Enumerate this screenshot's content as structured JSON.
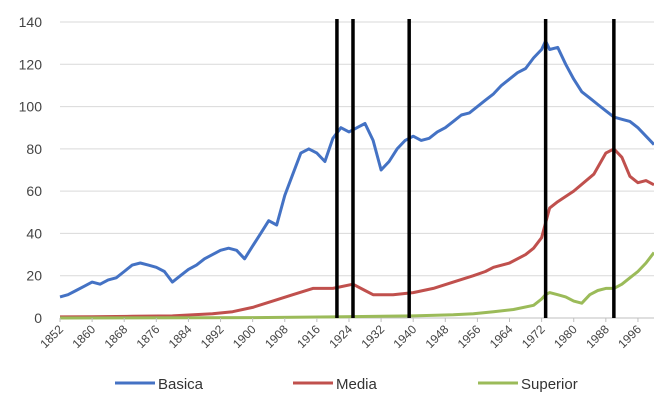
{
  "chart_data": {
    "type": "line",
    "xlim": [
      1852,
      2000
    ],
    "ylim": [
      0,
      140
    ],
    "y_ticks": [
      0,
      20,
      40,
      60,
      80,
      100,
      120,
      140
    ],
    "x_ticks": [
      1852,
      1860,
      1868,
      1876,
      1884,
      1892,
      1900,
      1908,
      1916,
      1924,
      1932,
      1940,
      1948,
      1956,
      1964,
      1972,
      1980,
      1988,
      1996
    ],
    "grid": "horizontal",
    "legend_position": "bottom",
    "vertical_markers": [
      1921,
      1925,
      1939,
      1973,
      1990
    ],
    "series": [
      {
        "name": "Basica",
        "color": "#4472C4",
        "x": [
          1852,
          1854,
          1856,
          1858,
          1860,
          1862,
          1864,
          1866,
          1868,
          1870,
          1872,
          1874,
          1876,
          1878,
          1880,
          1882,
          1884,
          1886,
          1888,
          1890,
          1892,
          1894,
          1896,
          1898,
          1900,
          1902,
          1904,
          1906,
          1908,
          1910,
          1912,
          1914,
          1916,
          1918,
          1920,
          1922,
          1924,
          1926,
          1928,
          1930,
          1932,
          1934,
          1936,
          1938,
          1940,
          1942,
          1944,
          1946,
          1948,
          1950,
          1952,
          1954,
          1956,
          1958,
          1960,
          1962,
          1964,
          1966,
          1968,
          1970,
          1972,
          1973,
          1974,
          1976,
          1978,
          1980,
          1982,
          1984,
          1986,
          1988,
          1990,
          1992,
          1994,
          1996,
          1998,
          2000
        ],
        "values": [
          10,
          11,
          13,
          15,
          17,
          16,
          18,
          19,
          22,
          25,
          26,
          25,
          24,
          22,
          17,
          20,
          23,
          25,
          28,
          30,
          32,
          33,
          32,
          28,
          34,
          40,
          46,
          44,
          58,
          68,
          78,
          80,
          78,
          74,
          85,
          90,
          88,
          90,
          92,
          84,
          70,
          74,
          80,
          84,
          86,
          84,
          85,
          88,
          90,
          93,
          96,
          97,
          100,
          103,
          106,
          110,
          113,
          116,
          118,
          123,
          127,
          131,
          127,
          128,
          120,
          113,
          107,
          104,
          101,
          98,
          95,
          94,
          93,
          90,
          86,
          82
        ]
      },
      {
        "name": "Media",
        "color": "#C0504D",
        "x": [
          1852,
          1860,
          1870,
          1880,
          1890,
          1895,
          1900,
          1905,
          1910,
          1915,
          1920,
          1925,
          1928,
          1930,
          1935,
          1940,
          1945,
          1950,
          1955,
          1958,
          1960,
          1964,
          1968,
          1970,
          1972,
          1973,
          1974,
          1976,
          1980,
          1985,
          1988,
          1990,
          1992,
          1994,
          1996,
          1998,
          2000
        ],
        "values": [
          0.5,
          0.6,
          0.8,
          1,
          2,
          3,
          5,
          8,
          11,
          14,
          14,
          16,
          13,
          11,
          11,
          12,
          14,
          17,
          20,
          22,
          24,
          26,
          30,
          33,
          38,
          45,
          52,
          55,
          60,
          68,
          78,
          80,
          76,
          67,
          64,
          65,
          63
        ]
      },
      {
        "name": "Superior",
        "color": "#9BBB59",
        "x": [
          1852,
          1900,
          1920,
          1940,
          1950,
          1955,
          1960,
          1965,
          1970,
          1972,
          1973,
          1974,
          1976,
          1978,
          1980,
          1982,
          1984,
          1986,
          1988,
          1990,
          1992,
          1994,
          1996,
          1998,
          2000
        ],
        "values": [
          0,
          0.2,
          0.5,
          1,
          1.5,
          2,
          3,
          4,
          6,
          9,
          11,
          12,
          11,
          10,
          8,
          7,
          11,
          13,
          14,
          14,
          16,
          19,
          22,
          26,
          31
        ]
      }
    ]
  }
}
